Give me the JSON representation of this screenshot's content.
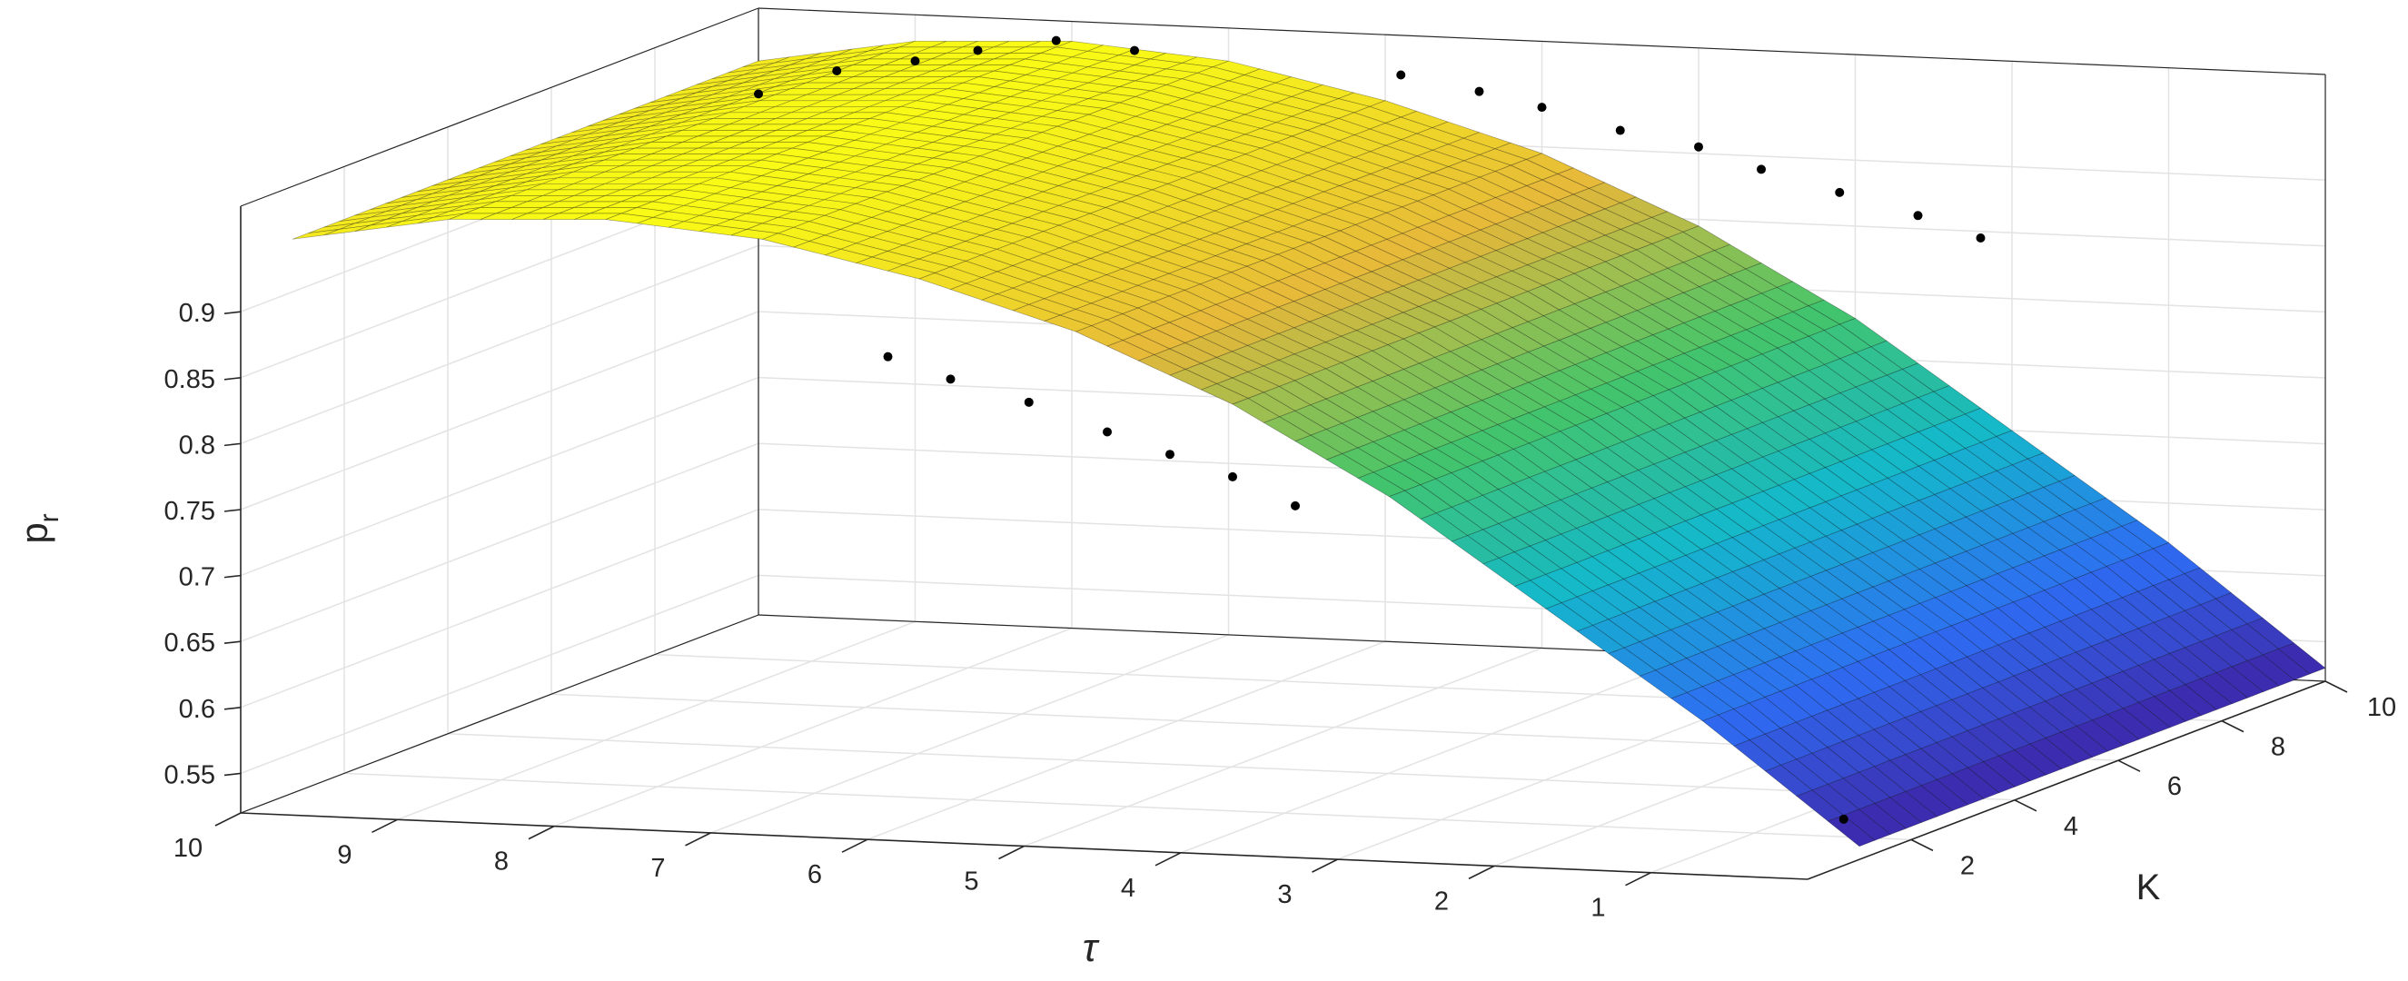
{
  "chart_data": {
    "type": "surface",
    "title": "",
    "axes": {
      "tau": {
        "label": "τ",
        "range": [
          0,
          10
        ],
        "ticks": [
          1,
          2,
          3,
          4,
          5,
          6,
          7,
          8,
          9,
          10
        ]
      },
      "K": {
        "label": "K",
        "range": [
          0,
          10
        ],
        "ticks": [
          2,
          4,
          6,
          8,
          10
        ]
      },
      "pr": {
        "label": "p",
        "label_subscript": "r",
        "range": [
          0.52,
          0.98
        ],
        "ticks": [
          0.55,
          0.6,
          0.65,
          0.7,
          0.75,
          0.8,
          0.85,
          0.9
        ],
        "tick_labels": [
          "0.55",
          "0.6",
          "0.65",
          "0.7",
          "0.75",
          "0.8",
          "0.85",
          "0.9"
        ]
      }
    },
    "grid": true,
    "colormap": [
      "#3e26a8",
      "#2e6df3",
      "#13b8cb",
      "#45c56a",
      "#e7b83a",
      "#f9fb15"
    ],
    "surface": {
      "tau_range": [
        0,
        10
      ],
      "K_range": [
        1,
        10
      ],
      "pr_by_tau": {
        "tau": [
          0,
          1,
          2,
          3,
          4,
          5,
          6,
          7,
          8,
          9,
          10
        ],
        "pr": [
          0.53,
          0.62,
          0.7,
          0.78,
          0.845,
          0.895,
          0.93,
          0.955,
          0.965,
          0.96,
          0.94
        ]
      },
      "K_slope": 0.0
    },
    "points": [
      {
        "tau": 0.1,
        "K": 1,
        "pr": 0.55
      },
      {
        "tau": 3.6,
        "K": 1,
        "pr": 0.77
      },
      {
        "tau": 4.0,
        "K": 1,
        "pr": 0.79
      },
      {
        "tau": 4.4,
        "K": 1,
        "pr": 0.805
      },
      {
        "tau": 4.8,
        "K": 1,
        "pr": 0.82
      },
      {
        "tau": 5.3,
        "K": 1,
        "pr": 0.84
      },
      {
        "tau": 5.8,
        "K": 1,
        "pr": 0.855
      },
      {
        "tau": 6.2,
        "K": 1,
        "pr": 0.87
      },
      {
        "tau": 2.2,
        "K": 10,
        "pr": 0.845
      },
      {
        "tau": 2.6,
        "K": 10,
        "pr": 0.86
      },
      {
        "tau": 3.1,
        "K": 10,
        "pr": 0.875
      },
      {
        "tau": 3.6,
        "K": 10,
        "pr": 0.89
      },
      {
        "tau": 4.0,
        "K": 10,
        "pr": 0.905
      },
      {
        "tau": 4.5,
        "K": 10,
        "pr": 0.915
      },
      {
        "tau": 5.0,
        "K": 10,
        "pr": 0.93
      },
      {
        "tau": 5.4,
        "K": 10,
        "pr": 0.94
      },
      {
        "tau": 5.9,
        "K": 10,
        "pr": 0.95
      },
      {
        "tau": 7.6,
        "K": 10,
        "pr": 0.96
      },
      {
        "tau": 8.1,
        "K": 10,
        "pr": 0.965
      },
      {
        "tau": 8.6,
        "K": 10,
        "pr": 0.955
      },
      {
        "tau": 9.0,
        "K": 10,
        "pr": 0.945
      },
      {
        "tau": 9.5,
        "K": 10,
        "pr": 0.935
      },
      {
        "tau": 10.0,
        "K": 10,
        "pr": 0.915
      }
    ]
  }
}
